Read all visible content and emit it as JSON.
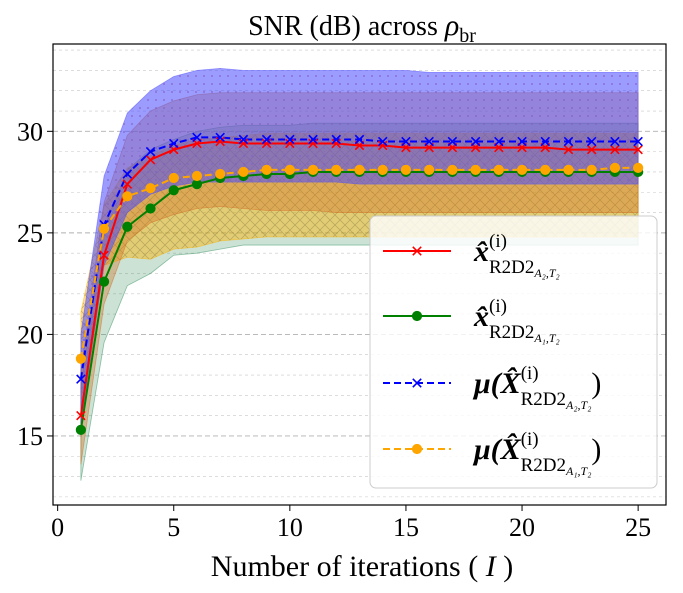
{
  "chart_data": {
    "type": "line",
    "title_text": "SNR (dB) across ",
    "title_symbol": "ρ",
    "title_subscript": "br",
    "xlabel_text": "Number of iterations ( ",
    "xlabel_var": "I",
    "xlabel_close": " )",
    "ylabel": "",
    "xlim": [
      -0.2,
      26.2
    ],
    "ylim": [
      11.6,
      34.3
    ],
    "xticks": [
      0,
      5,
      10,
      15,
      20,
      25
    ],
    "yticks": [
      15,
      20,
      25,
      30
    ],
    "grid": "horizontal dashed",
    "legend_position": "lower-right",
    "x": [
      1,
      2,
      3,
      4,
      5,
      6,
      7,
      8,
      9,
      10,
      11,
      12,
      13,
      14,
      15,
      16,
      17,
      18,
      19,
      20,
      21,
      22,
      23,
      24,
      25
    ],
    "series": [
      {
        "name": "x_hat R2D2 A2,T2",
        "legend_main": "x̂",
        "legend_sup": "(i)",
        "legend_sub": "R2D2",
        "legend_sub2": "A₂,T₂",
        "color": "#ff0000",
        "linestyle": "solid",
        "marker": "x",
        "values": [
          16.0,
          23.9,
          27.4,
          28.6,
          29.1,
          29.4,
          29.5,
          29.4,
          29.4,
          29.4,
          29.4,
          29.4,
          29.3,
          29.3,
          29.2,
          29.2,
          29.2,
          29.2,
          29.2,
          29.2,
          29.2,
          29.1,
          29.1,
          29.1,
          29.1
        ]
      },
      {
        "name": "x_hat R2D2 A1,T2",
        "legend_main": "x̂",
        "legend_sup": "(i)",
        "legend_sub": "R2D2",
        "legend_sub2": "A₁,T₂",
        "color": "#008000",
        "linestyle": "solid",
        "marker": "o",
        "values": [
          15.3,
          22.6,
          25.3,
          26.2,
          27.1,
          27.4,
          27.7,
          27.8,
          27.9,
          27.9,
          28.0,
          28.0,
          28.0,
          28.0,
          28.0,
          28.0,
          28.0,
          28.0,
          28.0,
          28.0,
          28.0,
          28.0,
          28.0,
          28.0,
          28.0
        ]
      },
      {
        "name": "mu(X_hat R2D2 A2,T2)",
        "legend_main": "μ(X̂",
        "legend_sup": "(i)",
        "legend_sub": "R2D2",
        "legend_sub2": "A₂,T₂",
        "color": "#0000ff",
        "linestyle": "dashed",
        "marker": "x",
        "values": [
          17.8,
          25.4,
          27.9,
          29.0,
          29.4,
          29.7,
          29.7,
          29.6,
          29.6,
          29.6,
          29.6,
          29.6,
          29.6,
          29.5,
          29.5,
          29.5,
          29.5,
          29.5,
          29.5,
          29.5,
          29.5,
          29.5,
          29.5,
          29.5,
          29.5
        ]
      },
      {
        "name": "mu(X_hat R2D2 A1,T2)",
        "legend_main": "μ(X̂",
        "legend_sup": "(i)",
        "legend_sub": "R2D2",
        "legend_sub2": "A₁,T₂",
        "color": "#ffa500",
        "linestyle": "dashed",
        "marker": "o",
        "values": [
          18.8,
          25.2,
          26.8,
          27.2,
          27.7,
          27.8,
          27.9,
          28.0,
          28.1,
          28.1,
          28.1,
          28.1,
          28.1,
          28.1,
          28.1,
          28.1,
          28.1,
          28.1,
          28.1,
          28.1,
          28.1,
          28.1,
          28.1,
          28.2,
          28.2
        ]
      }
    ],
    "bands": [
      {
        "name": "green band",
        "color": "#2e8b57",
        "opacity": 0.25,
        "lower": [
          12.8,
          19.6,
          22.4,
          23.0,
          23.9,
          24.0,
          24.2,
          24.4,
          24.4,
          24.4,
          24.4,
          24.4,
          24.4,
          24.4,
          24.4,
          24.4,
          24.4,
          24.4,
          24.4,
          24.4,
          24.4,
          24.4,
          24.4,
          24.4,
          24.4
        ],
        "upper": [
          17.4,
          25.2,
          28.1,
          29.1,
          29.6,
          30.0,
          30.2,
          30.3,
          30.3,
          30.3,
          30.4,
          30.4,
          30.4,
          30.4,
          30.4,
          30.4,
          30.4,
          30.4,
          30.4,
          30.4,
          30.4,
          30.4,
          30.4,
          30.4,
          30.4
        ]
      },
      {
        "name": "orange band",
        "color": "#ffb300",
        "opacity": 0.45,
        "lower": [
          15.2,
          23.4,
          23.8,
          23.7,
          24.2,
          24.3,
          24.6,
          24.7,
          24.8,
          24.8,
          24.8,
          24.8,
          24.8,
          24.8,
          24.8,
          24.8,
          24.8,
          24.8,
          24.8,
          24.8,
          24.8,
          24.8,
          24.8,
          24.8,
          24.8
        ],
        "upper": [
          21.1,
          26.4,
          28.2,
          28.8,
          29.3,
          29.6,
          29.7,
          29.8,
          29.9,
          29.9,
          29.9,
          29.9,
          29.9,
          29.9,
          29.9,
          29.9,
          29.9,
          29.9,
          29.9,
          29.9,
          29.9,
          29.9,
          29.9,
          29.9,
          29.9
        ]
      },
      {
        "name": "red band",
        "color": "#d2691e",
        "opacity": 0.35,
        "lower": [
          13.6,
          21.5,
          24.6,
          25.5,
          25.9,
          26.2,
          26.3,
          26.2,
          26.1,
          26.1,
          26.1,
          26.0,
          26.0,
          26.0,
          26.0,
          26.0,
          26.0,
          26.0,
          26.0,
          26.0,
          26.0,
          26.0,
          26.0,
          26.0,
          26.0
        ],
        "upper": [
          18.2,
          26.5,
          29.8,
          31.0,
          31.5,
          31.8,
          31.9,
          31.9,
          31.9,
          31.9,
          31.9,
          31.9,
          31.9,
          31.9,
          31.9,
          31.9,
          31.9,
          31.9,
          31.9,
          31.9,
          31.9,
          31.9,
          31.9,
          31.9,
          31.9
        ]
      },
      {
        "name": "blue band",
        "color": "#4b4bff",
        "opacity": 0.55,
        "lower": [
          15.6,
          23.4,
          26.0,
          26.9,
          27.3,
          27.5,
          27.5,
          27.5,
          27.5,
          27.5,
          27.5,
          27.5,
          27.4,
          27.4,
          27.4,
          27.4,
          27.4,
          27.4,
          27.4,
          27.4,
          27.4,
          27.4,
          27.4,
          27.4,
          27.4
        ],
        "upper": [
          20.0,
          27.8,
          30.9,
          32.0,
          32.7,
          33.0,
          33.1,
          33.0,
          33.0,
          33.0,
          33.0,
          33.0,
          33.0,
          33.0,
          33.0,
          32.9,
          32.9,
          32.9,
          32.9,
          32.9,
          32.9,
          32.9,
          32.9,
          32.9,
          32.9
        ]
      }
    ]
  }
}
